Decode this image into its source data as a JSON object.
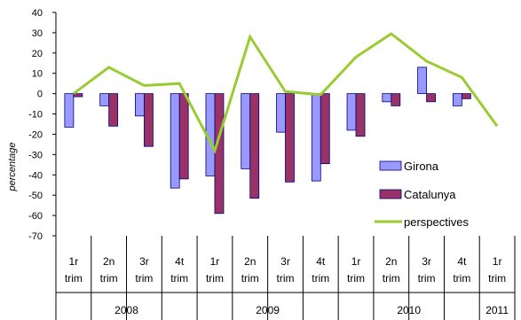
{
  "chart_data": {
    "type": "bar",
    "ylabel": "percentage",
    "ylim": [
      -70,
      40
    ],
    "yticks": [
      -70,
      -60,
      -50,
      -40,
      -30,
      -20,
      -10,
      0,
      10,
      20,
      30,
      40
    ],
    "grid": false,
    "legend_position": "right",
    "categories": [
      {
        "line1": "1r",
        "line2": "trim"
      },
      {
        "line1": "2n",
        "line2": "trim"
      },
      {
        "line1": "3r",
        "line2": "trim"
      },
      {
        "line1": "4t",
        "line2": "trim"
      },
      {
        "line1": "1r",
        "line2": "trim"
      },
      {
        "line1": "2n",
        "line2": "trim"
      },
      {
        "line1": "3r",
        "line2": "trim"
      },
      {
        "line1": "4t",
        "line2": "trim"
      },
      {
        "line1": "1r",
        "line2": "trim"
      },
      {
        "line1": "2n",
        "line2": "trim"
      },
      {
        "line1": "3r",
        "line2": "trim"
      },
      {
        "line1": "4t",
        "line2": "trim"
      },
      {
        "line1": "1r",
        "line2": "trim"
      }
    ],
    "years": [
      {
        "label": "2008",
        "start": 0,
        "end": 4
      },
      {
        "label": "2009",
        "start": 4,
        "end": 8
      },
      {
        "label": "2010",
        "start": 8,
        "end": 12
      },
      {
        "label": "2011",
        "start": 12,
        "end": 13
      }
    ],
    "series": [
      {
        "name": "Girona",
        "kind": "bar",
        "color": "#9999ff",
        "stroke": "#000080",
        "values": [
          -16.5,
          -6,
          -11,
          -46.5,
          -40.5,
          -37,
          -19,
          -43,
          -18,
          -4,
          13,
          -6,
          null
        ]
      },
      {
        "name": "Catalunya",
        "kind": "bar",
        "color": "#993366",
        "stroke": "#000080",
        "values": [
          -1.5,
          -16,
          -26,
          -42,
          -59,
          -51.5,
          -43.5,
          -34.5,
          -21,
          -6,
          -4,
          -2.5,
          null
        ]
      },
      {
        "name": "perspectives",
        "kind": "line",
        "color": "#99cc33",
        "values": [
          0,
          13,
          4,
          5,
          -28,
          28,
          1,
          -0.5,
          18,
          29.5,
          16,
          8,
          -16
        ]
      }
    ]
  }
}
